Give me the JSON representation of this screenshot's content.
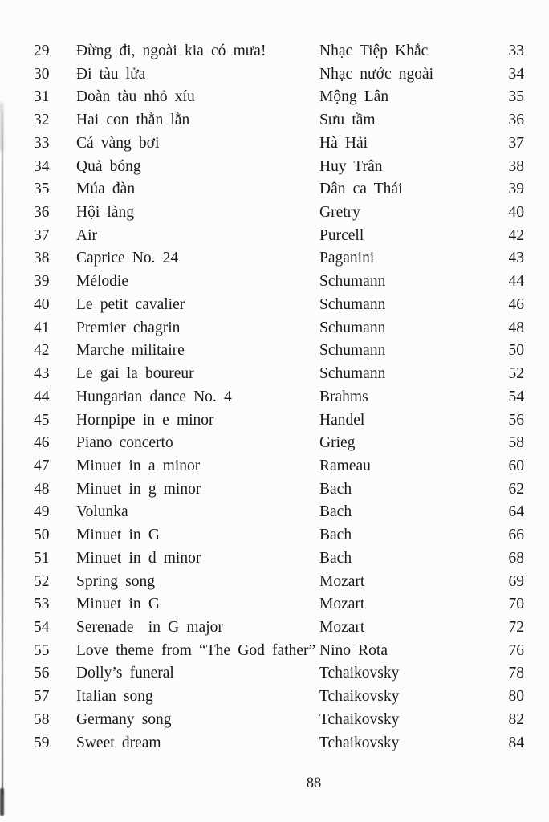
{
  "toc": {
    "rows": [
      {
        "no": "29",
        "title": "Đừng đi, ngoài kia có mưa!",
        "composer": "Nhạc Tiệp Khắc",
        "page": "33"
      },
      {
        "no": "30",
        "title": "Đi tàu lửa",
        "composer": "Nhạc nước ngoài",
        "page": "34"
      },
      {
        "no": "31",
        "title": "Đoàn tàu nhỏ xíu",
        "composer": "Mộng Lân",
        "page": "35"
      },
      {
        "no": "32",
        "title": "Hai con thằn lằn",
        "composer": "Sưu tầm",
        "page": "36"
      },
      {
        "no": "33",
        "title": "Cá vàng bơi",
        "composer": "Hà Hải",
        "page": "37"
      },
      {
        "no": "34",
        "title": "Quả bóng",
        "composer": "Huy Trân",
        "page": "38"
      },
      {
        "no": "35",
        "title": "Múa đàn",
        "composer": "Dân ca Thái",
        "page": "39"
      },
      {
        "no": "36",
        "title": "Hội làng",
        "composer": "Gretry",
        "page": "40"
      },
      {
        "no": "37",
        "title": "Air",
        "composer": "Purcell",
        "page": "42"
      },
      {
        "no": "38",
        "title": "Caprice No. 24",
        "composer": "Paganini",
        "page": "43"
      },
      {
        "no": "39",
        "title": "Mélodie",
        "composer": "Schumann",
        "page": "44"
      },
      {
        "no": "40",
        "title": "Le petit cavalier",
        "composer": "Schumann",
        "page": "46"
      },
      {
        "no": "41",
        "title": "Premier chagrin",
        "composer": "Schumann",
        "page": "48"
      },
      {
        "no": "42",
        "title": "Marche militaire",
        "composer": "Schumann",
        "page": "50"
      },
      {
        "no": "43",
        "title": "Le gai la boureur",
        "composer": "Schumann",
        "page": "52"
      },
      {
        "no": "44",
        "title": "Hungarian dance No. 4",
        "composer": "Brahms",
        "page": "54"
      },
      {
        "no": "45",
        "title": "Hornpipe in e minor",
        "composer": "Handel",
        "page": "56"
      },
      {
        "no": "46",
        "title": "Piano concerto",
        "composer": "Grieg",
        "page": "58"
      },
      {
        "no": "47",
        "title": "Minuet in a minor",
        "composer": "Rameau",
        "page": "60"
      },
      {
        "no": "48",
        "title": "Minuet in g minor",
        "composer": "Bach",
        "page": "62"
      },
      {
        "no": "49",
        "title": "Volunka",
        "composer": "Bach",
        "page": "64"
      },
      {
        "no": "50",
        "title": "Minuet in G",
        "composer": "Bach",
        "page": "66"
      },
      {
        "no": "51",
        "title": "Minuet in d minor",
        "composer": "Bach",
        "page": "68"
      },
      {
        "no": "52",
        "title": "Spring song",
        "composer": "Mozart",
        "page": "69"
      },
      {
        "no": "53",
        "title": "Minuet in G",
        "composer": "Mozart",
        "page": "70"
      },
      {
        "no": "54",
        "title": "Serenade  in G major",
        "composer": "Mozart",
        "page": "72"
      },
      {
        "no": "55",
        "title": "Love theme from “The God father”",
        "composer": "Nino Rota",
        "page": "76"
      },
      {
        "no": "56",
        "title": "Dolly’s funeral",
        "composer": "Tchaikovsky",
        "page": "78"
      },
      {
        "no": "57",
        "title": "Italian song",
        "composer": "Tchaikovsky",
        "page": "80"
      },
      {
        "no": "58",
        "title": "Germany song",
        "composer": "Tchaikovsky",
        "page": "82"
      },
      {
        "no": "59",
        "title": "Sweet dream",
        "composer": "Tchaikovsky",
        "page": "84"
      }
    ]
  },
  "footer": {
    "page_number": "88"
  }
}
